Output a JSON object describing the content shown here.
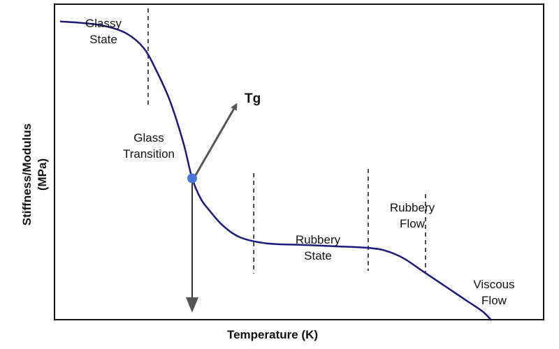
{
  "chart_data": {
    "type": "line",
    "title": "",
    "xlabel": "Temperature (K)",
    "ylabel": [
      "Stiffness/Modulus",
      "(MPa)"
    ],
    "xlim": [
      0,
      100
    ],
    "ylim": [
      0,
      100
    ],
    "grid": false,
    "legend": "none",
    "line_color": "#1a1a7a",
    "marker_color": "#4a78d8",
    "series": [
      {
        "x": [
          0,
          5,
          10,
          15,
          19,
          22,
          25,
          28,
          30,
          32,
          34,
          37,
          41,
          47,
          55,
          63,
          70,
          74,
          78,
          82,
          86,
          90,
          93,
          96,
          98
        ],
        "y": [
          97,
          96.5,
          95.5,
          93,
          88,
          80,
          70,
          56,
          44,
          37,
          33,
          28,
          24,
          22,
          21.5,
          21,
          20.5,
          19.5,
          17,
          13,
          9,
          5,
          2,
          -1,
          -4
        ]
      }
    ],
    "tg_point": {
      "x": 30,
      "y": 44
    },
    "region_dividers": [
      20,
      44,
      70,
      83
    ],
    "annotations": [
      {
        "lines": [
          "Glassy",
          "State"
        ]
      },
      {
        "lines": [
          "Glass",
          "Transition"
        ]
      },
      {
        "lines": [
          "Rubbery",
          "State"
        ]
      },
      {
        "lines": [
          "Rubbery",
          "Flow"
        ]
      },
      {
        "lines": [
          "Viscous",
          "Flow"
        ]
      }
    ],
    "tg_label": "Tg"
  }
}
